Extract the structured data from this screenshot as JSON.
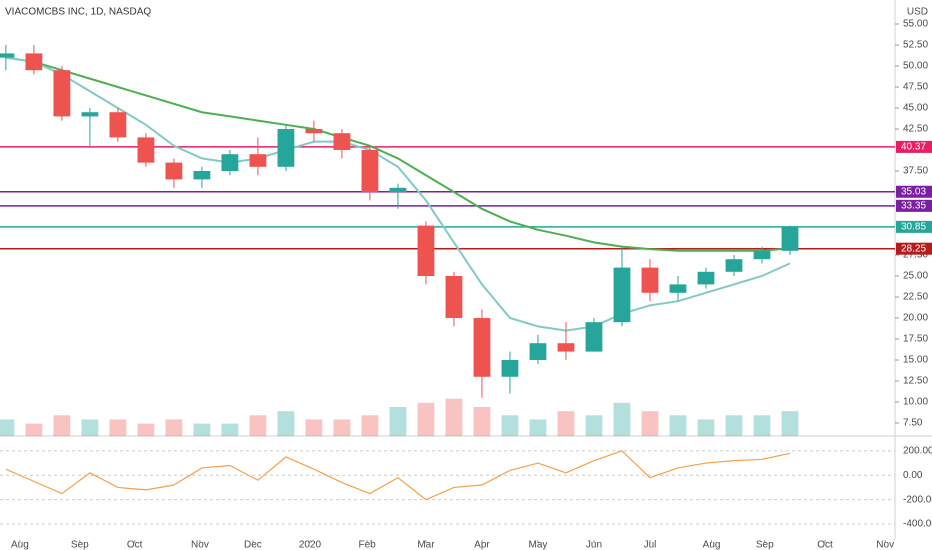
{
  "chart_data": [
    {
      "type": "candlestick",
      "title": "VIACOMCBS INC, 1D, NASDAQ",
      "currency": "USD",
      "x": [
        0,
        1,
        2,
        3,
        4,
        5,
        6,
        7,
        8,
        9,
        10,
        11,
        12,
        13,
        14,
        15,
        16,
        17,
        18,
        19,
        20,
        21,
        22,
        23,
        24,
        25,
        26,
        27,
        28
      ],
      "xlim": [
        -0.21,
        31.75
      ],
      "xticks": [
        {
          "value": 0.5,
          "label": "Aug"
        },
        {
          "value": 2.64,
          "label": "Sep"
        },
        {
          "value": 4.6,
          "label": "Oct"
        },
        {
          "value": 6.93,
          "label": "Nov"
        },
        {
          "value": 8.82,
          "label": "Dec"
        },
        {
          "value": 10.86,
          "label": "2020"
        },
        {
          "value": 12.9,
          "label": "Feb"
        },
        {
          "value": 15,
          "label": "Mar"
        },
        {
          "value": 17,
          "label": "Apr"
        },
        {
          "value": 19,
          "label": "May"
        },
        {
          "value": 21,
          "label": "Jun"
        },
        {
          "value": 23,
          "label": "Jul"
        },
        {
          "value": 25.2,
          "label": "Aug"
        },
        {
          "value": 27.1,
          "label": "Sep"
        },
        {
          "value": 29.25,
          "label": "Oct"
        },
        {
          "value": 31.4,
          "label": "Nov"
        }
      ],
      "open": [
        51,
        51.5,
        49.5,
        44,
        44.5,
        41.5,
        38.5,
        36.5,
        37.5,
        39.5,
        38,
        42.5,
        42,
        40,
        35,
        31,
        25,
        20,
        13,
        15,
        17,
        16,
        19.5,
        26,
        23,
        24,
        25.5,
        27,
        28
      ],
      "high": [
        52.5,
        52.5,
        50,
        45,
        45,
        42,
        39,
        38,
        40,
        41.5,
        43,
        43.5,
        42.5,
        40.5,
        36,
        31.5,
        25.5,
        21,
        16,
        18,
        19.5,
        20,
        28.5,
        27,
        25,
        26,
        27.5,
        28.5,
        31
      ],
      "low": [
        49.5,
        49,
        43.5,
        40.5,
        41,
        38,
        35.5,
        35.5,
        37,
        37,
        37.5,
        41,
        39,
        34,
        33,
        24,
        19,
        10.5,
        11,
        14.5,
        15,
        16,
        19,
        22,
        22,
        23.5,
        25,
        26.5,
        27.5
      ],
      "close": [
        51.5,
        49.5,
        44,
        44.5,
        41.5,
        38.5,
        36.5,
        37.5,
        39.5,
        38,
        42.5,
        42,
        40,
        35,
        35.5,
        25,
        20,
        13,
        15,
        17,
        16,
        19.5,
        26,
        23,
        24,
        25.5,
        27,
        28,
        30.8
      ],
      "up_color": "#26a69a",
      "down_color": "#ef5350",
      "volume": [
        4,
        3,
        5,
        4,
        4,
        3,
        4,
        3,
        3,
        5,
        6,
        4,
        4,
        5,
        7,
        8,
        9,
        7,
        5,
        4,
        6,
        5,
        8,
        6,
        5,
        4,
        5,
        5,
        6
      ],
      "volume_ylim": [
        0,
        28
      ],
      "moving_averages": [
        {
          "color": "#4caf50",
          "values": [
            51,
            50.5,
            49.5,
            48.5,
            47.5,
            46.5,
            45.5,
            44.5,
            44,
            43.5,
            43,
            42.5,
            41.5,
            40.5,
            39,
            37,
            35,
            33,
            31.5,
            30.5,
            29.8,
            29,
            28.5,
            28.2,
            28,
            28,
            28,
            28,
            28.3
          ]
        },
        {
          "color": "#80cbc4",
          "values": [
            51,
            50.5,
            49,
            47,
            45,
            43,
            40.5,
            39,
            38.5,
            39,
            40,
            41,
            41,
            40,
            38,
            34,
            29,
            24,
            20,
            19,
            18.5,
            19,
            20.5,
            21.5,
            22,
            23,
            24,
            25,
            26.5
          ]
        }
      ],
      "levels": [
        {
          "value": 40.37,
          "color": "#e91e63"
        },
        {
          "value": 35.03,
          "color": "#7b1fa2"
        },
        {
          "value": 33.35,
          "color": "#7b1fa2"
        },
        {
          "value": 30.85,
          "color": "#26a69a"
        },
        {
          "value": 28.25,
          "color": "#b71c1c"
        }
      ],
      "ylim": [
        5.95,
        57.86
      ],
      "yticks": [
        {
          "value": 7.5,
          "label": "7.50"
        },
        {
          "value": 10,
          "label": "10.00"
        },
        {
          "value": 12.5,
          "label": "12.50"
        },
        {
          "value": 15,
          "label": "15.00"
        },
        {
          "value": 17.5,
          "label": "17.50"
        },
        {
          "value": 20,
          "label": "20.00"
        },
        {
          "value": 22.5,
          "label": "22.50"
        },
        {
          "value": 25,
          "label": "25.00"
        },
        {
          "value": 27.5,
          "label": "27.50"
        },
        {
          "value": 37.5,
          "label": "37.50"
        },
        {
          "value": 42.5,
          "label": "42.50"
        },
        {
          "value": 45,
          "label": "45.00"
        },
        {
          "value": 47.5,
          "label": "47.50"
        },
        {
          "value": 50,
          "label": "50.00"
        },
        {
          "value": 52.5,
          "label": "52.50"
        },
        {
          "value": 55,
          "label": "55.00"
        }
      ]
    },
    {
      "type": "line",
      "color": "#f7a046",
      "values": [
        50,
        -50,
        -150,
        20,
        -100,
        -120,
        -80,
        60,
        80,
        -40,
        150,
        50,
        -60,
        -150,
        -20,
        -200,
        -100,
        -80,
        40,
        100,
        20,
        120,
        200,
        -20,
        60,
        100,
        120,
        130,
        180
      ],
      "ylim": [
        -531,
        314
      ],
      "yticks": [
        {
          "value": 200,
          "label": "200.00"
        },
        {
          "value": 0,
          "label": "0.00"
        },
        {
          "value": -200,
          "label": "-200.00"
        },
        {
          "value": -400,
          "label": "-400.00"
        }
      ]
    }
  ]
}
